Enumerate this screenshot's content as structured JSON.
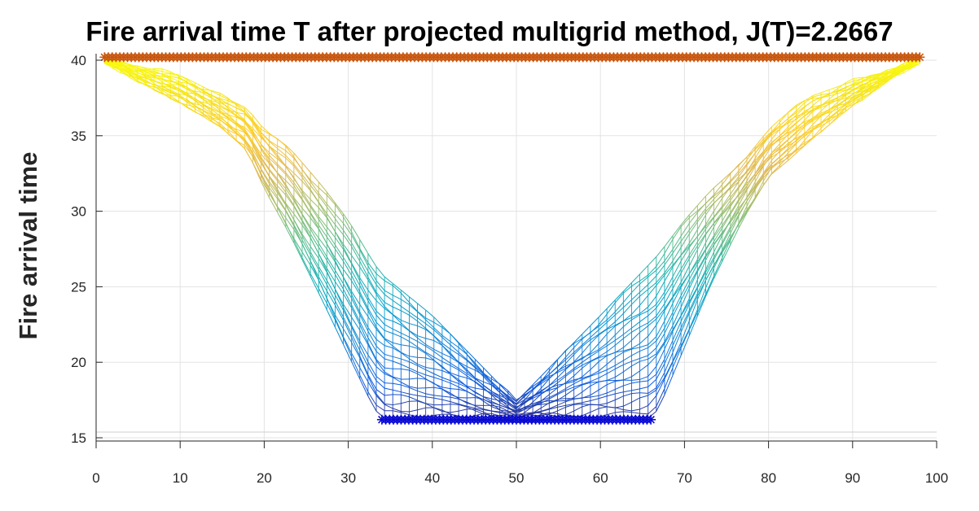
{
  "chart_data": {
    "type": "surface-mesh",
    "title": "Fire arrival time T after projected multigrid method, J(T)=2.2667",
    "xlabel": "",
    "ylabel": "Fire arrival time",
    "xlim": [
      0,
      100
    ],
    "ylim": [
      15,
      40
    ],
    "xticks": [
      "0",
      "10",
      "20",
      "30",
      "40",
      "50",
      "60",
      "70",
      "80",
      "90",
      "100"
    ],
    "yticks": [
      "15",
      "20",
      "25",
      "30",
      "35",
      "40"
    ],
    "grid": true,
    "colormap": "parula",
    "profile": {
      "x": [
        1,
        5,
        10,
        15,
        18,
        20,
        23,
        27,
        30,
        33,
        34,
        40,
        50,
        60,
        66,
        67,
        70,
        73,
        77,
        80,
        82,
        85,
        90,
        95,
        98
      ],
      "outer_envelope": [
        40,
        38.6,
        37.2,
        35.5,
        34,
        31.5,
        28.5,
        24,
        20.5,
        17,
        16.3,
        16.2,
        16.1,
        16.2,
        16.3,
        17,
        21,
        25,
        29.5,
        32.3,
        33.2,
        34.7,
        37,
        39,
        40
      ],
      "center_profile": [
        40,
        39.6,
        39.0,
        37.6,
        36.8,
        35.4,
        34.2,
        31.6,
        29.4,
        26.6,
        25.8,
        23.1,
        17.4,
        23.1,
        26.6,
        27.2,
        29.4,
        31.3,
        33.3,
        35.4,
        36.4,
        37.6,
        38.6,
        39.4,
        40
      ]
    },
    "markers": [
      {
        "name": "ignition-line-top",
        "value": 40.2,
        "x_range": [
          1,
          98
        ],
        "color": "#c8560e",
        "symbol": "*"
      },
      {
        "name": "ignition-line-bottom",
        "value": 16.2,
        "x_range": [
          34,
          66
        ],
        "color": "#0a0ad2",
        "symbol": "*"
      }
    ]
  }
}
